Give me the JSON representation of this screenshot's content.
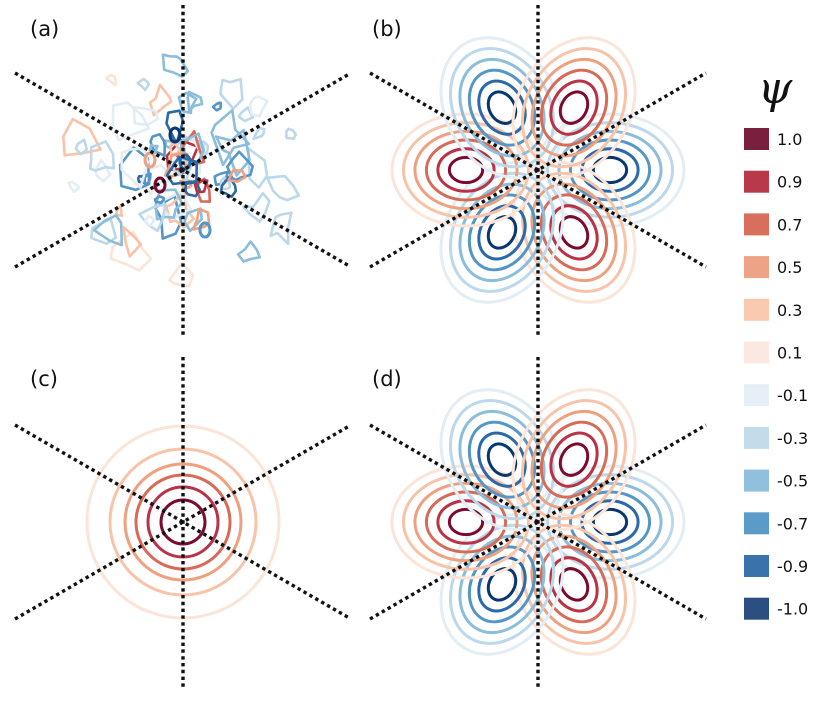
{
  "panels": [
    {
      "label": "(a)",
      "kind": "noisy"
    },
    {
      "label": "(b)",
      "kind": "lobes"
    },
    {
      "label": "(c)",
      "kind": "rings"
    },
    {
      "label": "(d)",
      "kind": "lobes"
    }
  ],
  "colorbar": {
    "title": "ψ",
    "levels": [
      {
        "label": "1.0",
        "color": "#7b1f3f"
      },
      {
        "label": "0.9",
        "color": "#b8394a"
      },
      {
        "label": "0.7",
        "color": "#d86f5e"
      },
      {
        "label": "0.5",
        "color": "#eea386"
      },
      {
        "label": "0.3",
        "color": "#f9cab0"
      },
      {
        "label": "0.1",
        "color": "#fbe9e1"
      },
      {
        "label": "-0.1",
        "color": "#e6eff5"
      },
      {
        "label": "-0.3",
        "color": "#c3dcea"
      },
      {
        "label": "-0.5",
        "color": "#91c0dc"
      },
      {
        "label": "-0.7",
        "color": "#5b9bc8"
      },
      {
        "label": "-0.9",
        "color": "#3a72ac"
      },
      {
        "label": "-1.0",
        "color": "#2a4f80"
      }
    ]
  },
  "contour_colors": {
    "pos": [
      "#fbe4d8",
      "#f8c3a8",
      "#eea07f",
      "#d86a58",
      "#b93246",
      "#7c0a2e"
    ],
    "neg": [
      "#e3edf4",
      "#bcd8ea",
      "#8cbddb",
      "#5496c6",
      "#2c69a8",
      "#083770"
    ]
  }
}
